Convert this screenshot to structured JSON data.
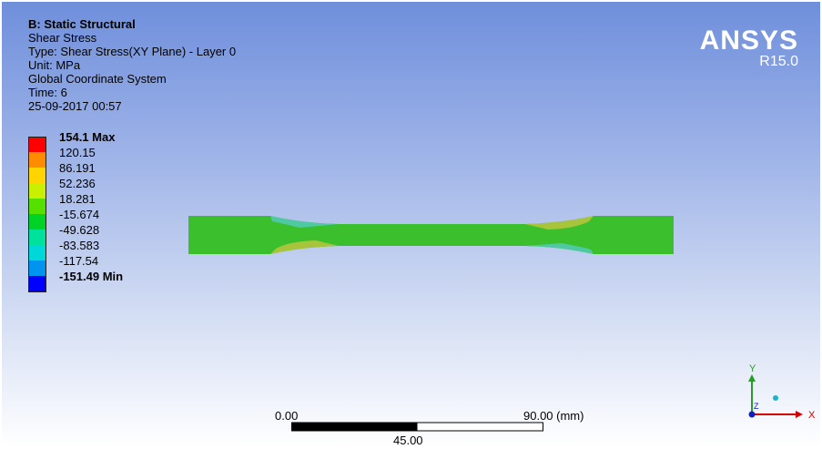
{
  "info": {
    "title": "B: Static Structural",
    "result": "Shear Stress",
    "type": "Type: Shear Stress(XY Plane) - Layer 0",
    "unit": "Unit: MPa",
    "coordinate_system": "Global Coordinate System",
    "time": "Time: 6",
    "date": "25-09-2017 00:57"
  },
  "brand": {
    "name": "ANSYS",
    "version": "R15.0"
  },
  "legend": {
    "items": [
      {
        "label": "154.1 Max",
        "color": "#ff0000",
        "bold": true
      },
      {
        "label": "120.15",
        "color": "#ff8c00",
        "bold": false
      },
      {
        "label": "86.191",
        "color": "#ffd400",
        "bold": false
      },
      {
        "label": "52.236",
        "color": "#c8f000",
        "bold": false
      },
      {
        "label": "18.281",
        "color": "#56e000",
        "bold": false
      },
      {
        "label": "-15.674",
        "color": "#00d226",
        "bold": false
      },
      {
        "label": "-49.628",
        "color": "#00e29c",
        "bold": false
      },
      {
        "label": "-83.583",
        "color": "#00d8d8",
        "bold": false
      },
      {
        "label": "-117.54",
        "color": "#0093f0",
        "bold": false
      },
      {
        "label": "-151.49 Min",
        "color": "#0000ff",
        "bold": true
      }
    ]
  },
  "model": {
    "base_color": "#3cbf2c",
    "fillet_warm_color": "#a8c43a",
    "fillet_cool_color": "#4ec9a2"
  },
  "scale_bar": {
    "left_label": "0.00",
    "right_label": "90.00 (mm)",
    "mid_label": "45.00"
  },
  "triad": {
    "x_label": "X",
    "y_label": "Y",
    "z_label": "Z"
  }
}
